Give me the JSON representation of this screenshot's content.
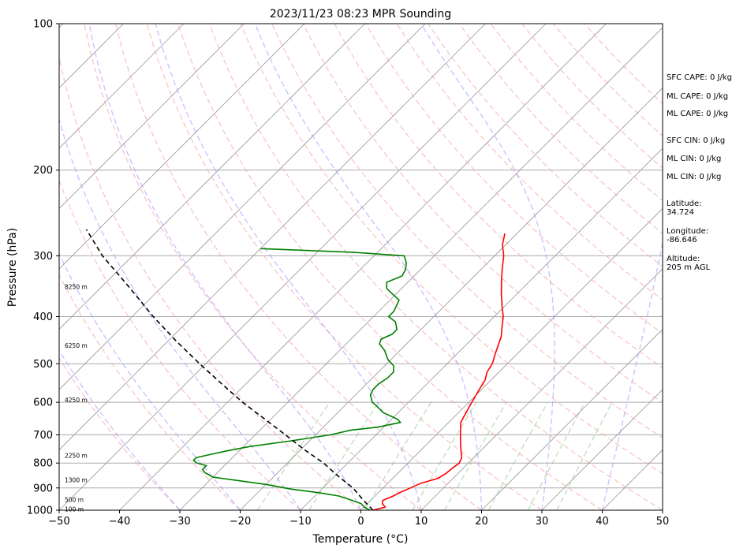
{
  "chart_data": {
    "type": "line",
    "title": "2023/11/23 08:23 MPR Sounding",
    "xlabel": "Temperature (°C)",
    "ylabel": "Pressure (hPa)",
    "xlim": [
      -50,
      50
    ],
    "ylim": [
      1000,
      100
    ],
    "y_scale": "log",
    "x_ticks": [
      "−50",
      "−40",
      "−30",
      "−20",
      "−10",
      "0",
      "10",
      "20",
      "30",
      "40",
      "50"
    ],
    "x_tick_values": [
      -50,
      -40,
      -30,
      -20,
      -10,
      0,
      10,
      20,
      30,
      40,
      50
    ],
    "y_ticks": [
      "100",
      "200",
      "300",
      "400",
      "500",
      "600",
      "700",
      "800",
      "900",
      "1000"
    ],
    "y_tick_values": [
      100,
      200,
      300,
      400,
      500,
      600,
      700,
      800,
      900,
      1000
    ],
    "height_labels": [
      {
        "text": "8250 m",
        "p": 347
      },
      {
        "text": "6250 m",
        "p": 458
      },
      {
        "text": "4250 m",
        "p": 593
      },
      {
        "text": "2250 m",
        "p": 772
      },
      {
        "text": "1300 m",
        "p": 866
      },
      {
        "text": "500 m",
        "p": 951
      },
      {
        "text": "100 m",
        "p": 995
      }
    ],
    "series": [
      {
        "color": "#ff0000",
        "values_p_t": [
          [
            1000,
            2.0
          ],
          [
            985,
            3.5
          ],
          [
            970,
            2.5
          ],
          [
            955,
            2.0
          ],
          [
            935,
            3.0
          ],
          [
            920,
            3.5
          ],
          [
            900,
            4.5
          ],
          [
            880,
            5.5
          ],
          [
            860,
            7.5
          ],
          [
            840,
            8.0
          ],
          [
            820,
            8.2
          ],
          [
            800,
            8.5
          ],
          [
            780,
            8.0
          ],
          [
            760,
            7.0
          ],
          [
            740,
            6.0
          ],
          [
            720,
            5.0
          ],
          [
            700,
            4.0
          ],
          [
            680,
            3.0
          ],
          [
            660,
            2.0
          ],
          [
            640,
            1.5
          ],
          [
            620,
            1.0
          ],
          [
            600,
            0.5
          ],
          [
            580,
            0.0
          ],
          [
            560,
            -0.5
          ],
          [
            540,
            -1.0
          ],
          [
            520,
            -2.0
          ],
          [
            500,
            -2.5
          ],
          [
            480,
            -3.5
          ],
          [
            460,
            -4.5
          ],
          [
            440,
            -5.5
          ],
          [
            420,
            -7.0
          ],
          [
            400,
            -8.5
          ],
          [
            380,
            -10.5
          ],
          [
            360,
            -12.5
          ],
          [
            340,
            -14.5
          ],
          [
            320,
            -16.5
          ],
          [
            300,
            -18.5
          ],
          [
            285,
            -20.5
          ],
          [
            270,
            -22.0
          ]
        ]
      },
      {
        "color": "#008000",
        "values_p_t": [
          [
            1000,
            1.5
          ],
          [
            985,
            0.0
          ],
          [
            970,
            -1.0
          ],
          [
            955,
            -3.0
          ],
          [
            935,
            -6.0
          ],
          [
            920,
            -10.0
          ],
          [
            905,
            -15.0
          ],
          [
            885,
            -20.0
          ],
          [
            870,
            -25.0
          ],
          [
            855,
            -30.0
          ],
          [
            838,
            -32.0
          ],
          [
            825,
            -33.0
          ],
          [
            810,
            -33.0
          ],
          [
            800,
            -35.0
          ],
          [
            790,
            -36.0
          ],
          [
            780,
            -36.0
          ],
          [
            770,
            -34.5
          ],
          [
            755,
            -32.0
          ],
          [
            740,
            -29.0
          ],
          [
            720,
            -23.0
          ],
          [
            700,
            -17.5
          ],
          [
            685,
            -15.0
          ],
          [
            675,
            -11.0
          ],
          [
            660,
            -8.0
          ],
          [
            650,
            -9.0
          ],
          [
            630,
            -12.5
          ],
          [
            612,
            -14.5
          ],
          [
            600,
            -16.0
          ],
          [
            580,
            -17.5
          ],
          [
            565,
            -18.0
          ],
          [
            550,
            -18.0
          ],
          [
            535,
            -17.5
          ],
          [
            520,
            -17.5
          ],
          [
            505,
            -18.5
          ],
          [
            490,
            -20.5
          ],
          [
            470,
            -22.5
          ],
          [
            455,
            -24.5
          ],
          [
            445,
            -25.0
          ],
          [
            435,
            -24.0
          ],
          [
            425,
            -24.0
          ],
          [
            410,
            -25.5
          ],
          [
            400,
            -27.5
          ],
          [
            390,
            -27.5
          ],
          [
            380,
            -28.0
          ],
          [
            370,
            -28.5
          ],
          [
            360,
            -30.5
          ],
          [
            350,
            -32.5
          ],
          [
            340,
            -33.5
          ],
          [
            330,
            -32.0
          ],
          [
            320,
            -32.5
          ],
          [
            310,
            -33.5
          ],
          [
            300,
            -35.0
          ],
          [
            295,
            -44.0
          ],
          [
            290,
            -60.0
          ]
        ]
      },
      {
        "color": "#000000",
        "values_p_t": [
          [
            1000,
            2.0
          ],
          [
            950,
            -1.5
          ],
          [
            900,
            -5.0
          ],
          [
            850,
            -9.5
          ],
          [
            800,
            -14.0
          ],
          [
            750,
            -19.5
          ],
          [
            700,
            -25.0
          ],
          [
            650,
            -31.0
          ],
          [
            600,
            -37.5
          ],
          [
            550,
            -44.0
          ],
          [
            500,
            -51.0
          ],
          [
            450,
            -58.5
          ],
          [
            400,
            -66.5
          ],
          [
            350,
            -75.0
          ],
          [
            300,
            -85.0
          ],
          [
            265,
            -92.0
          ]
        ]
      }
    ]
  },
  "side_panel": {
    "sfc_cape": "SFC CAPE: 0 J/kg",
    "ml_cape_1": "ML CAPE: 0 J/kg",
    "ml_cape_2": "ML CAPE: 0 J/kg",
    "sfc_cin": "SFC CIN: 0 J/kg",
    "ml_cin_1": "ML CIN: 0 J/kg",
    "ml_cin_2": "ML CIN: 0 J/kg",
    "latitude_label": "Latitude:",
    "latitude_value": "34.724",
    "longitude_label": "Longitude:",
    "longitude_value": "-86.646",
    "altitude_label": "Altitude:",
    "altitude_value": "205 m AGL"
  }
}
